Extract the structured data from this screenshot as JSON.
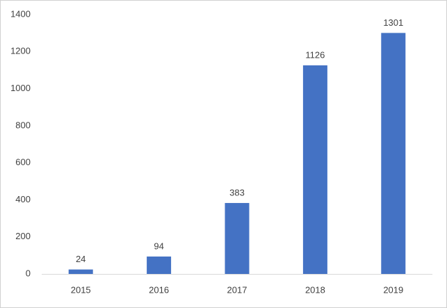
{
  "chart_data": {
    "type": "bar",
    "categories": [
      "2015",
      "2016",
      "2017",
      "2018",
      "2019"
    ],
    "values": [
      24,
      94,
      383,
      1126,
      1301
    ],
    "color": "#4472c4",
    "ylim": [
      0,
      1400
    ],
    "yticks": [
      0,
      200,
      400,
      600,
      800,
      1000,
      1200,
      1400
    ],
    "grid": false
  }
}
